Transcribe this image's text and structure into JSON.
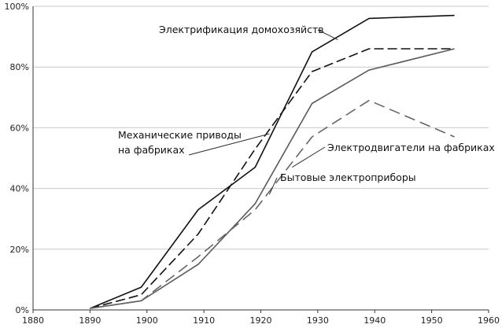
{
  "chart_data": {
    "type": "line",
    "title": "",
    "xlabel": "",
    "ylabel": "",
    "xlim": [
      1880,
      1960
    ],
    "ylim": [
      0,
      100
    ],
    "x_ticks": [
      "1880",
      "1890",
      "1900",
      "1910",
      "1920",
      "1930",
      "1940",
      "1950",
      "1960"
    ],
    "y_ticks": [
      "0%",
      "20%",
      "40%",
      "60%",
      "80%",
      "100%"
    ],
    "grid": true,
    "legend": "none (series labelled by annotations)",
    "series": [
      {
        "name": "Электрификация домохозяйств",
        "color": "#111111",
        "style": "solid",
        "x": [
          1890,
          1899,
          1909,
          1919,
          1929,
          1939,
          1954
        ],
        "y": [
          0.5,
          7.5,
          33,
          47,
          85,
          96,
          97
        ]
      },
      {
        "name": "Механические приводы\nна фабриках",
        "color": "#111111",
        "style": "long-dash",
        "x": [
          1890,
          1899,
          1909,
          1919,
          1929,
          1939,
          1954
        ],
        "y": [
          0.5,
          5,
          25,
          53,
          78.5,
          86,
          86
        ]
      },
      {
        "name": "Электродвигатели на фабриках",
        "color": "#5a5a5a",
        "style": "solid",
        "x": [
          1890,
          1899,
          1909,
          1919,
          1929,
          1939,
          1954
        ],
        "y": [
          0.5,
          3,
          15,
          35,
          68,
          79,
          86
        ]
      },
      {
        "name": "Бытовые электроприборы",
        "color": "#666666",
        "style": "dash",
        "x": [
          1890,
          1899,
          1909,
          1919,
          1929,
          1939,
          1954
        ],
        "y": [
          0.5,
          3,
          17.5,
          33,
          57,
          69,
          57
        ]
      }
    ],
    "annotations": [
      {
        "text": "Электрификация домохозяйств",
        "series": 0
      },
      {
        "text": "Механические приводы",
        "text2": "на фабриках",
        "series": 1
      },
      {
        "text": "Электродвигатели на фабриках",
        "series": 2
      },
      {
        "text": "Бытовые электроприборы",
        "series": 3
      }
    ]
  }
}
